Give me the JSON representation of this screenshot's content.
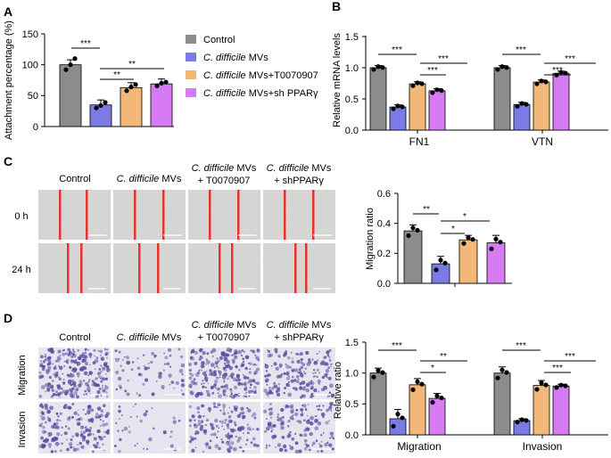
{
  "colors": {
    "control": "#8C8C8C",
    "mvs": "#7B7BE6",
    "t007": "#F3B778",
    "sh": "#D77BF5",
    "red_line": "#E8322B",
    "stain": "#5B4A9E"
  },
  "panels": {
    "A": "A",
    "B": "B",
    "C": "C",
    "D": "D"
  },
  "legend": {
    "control": "Control",
    "mvs_italic": "C. difficile",
    "mvs_rest": " MVs",
    "t007_italic": "C. difficile",
    "t007_rest": " MVs+T0070907",
    "sh_italic": "C. difficile",
    "sh_rest": " MVs+sh PPARγ"
  },
  "chartA": {
    "ylabel": "Attachment percentage (%)",
    "yticks": [
      "0",
      "50",
      "100",
      "150"
    ],
    "ylim": [
      0,
      150
    ],
    "values": [
      100,
      35,
      63,
      69
    ],
    "points": [
      [
        92,
        100,
        110
      ],
      [
        30,
        34,
        39
      ],
      [
        58,
        64,
        68
      ],
      [
        66,
        70,
        72
      ]
    ],
    "sig": [
      "***",
      "**",
      "**"
    ]
  },
  "chartB": {
    "ylabel": "Relative mRNA levels",
    "yticks": [
      "0.0",
      "0.5",
      "1.0",
      "1.5"
    ],
    "ylim": [
      0,
      1.5
    ],
    "groups": [
      "FN1",
      "VTN"
    ],
    "values": [
      [
        1.0,
        0.37,
        0.74,
        0.63
      ],
      [
        1.0,
        0.41,
        0.77,
        0.91
      ]
    ],
    "sig": [
      "***",
      "***",
      "***",
      "***",
      "***",
      "***"
    ]
  },
  "chartC": {
    "ylabel": "Migration ratio",
    "yticks": [
      "0.0",
      "0.2",
      "0.4",
      "0.6"
    ],
    "ylim": [
      0,
      0.6
    ],
    "values": [
      0.35,
      0.13,
      0.29,
      0.27
    ],
    "sig": [
      "**",
      "*",
      "*"
    ]
  },
  "chartD": {
    "ylabel": "Relative ratio",
    "yticks": [
      "0.0",
      "0.5",
      "1.0",
      "1.5"
    ],
    "ylim": [
      0,
      1.5
    ],
    "groups": [
      "Migration",
      "Invasion"
    ],
    "values": [
      [
        1.0,
        0.26,
        0.81,
        0.59
      ],
      [
        1.0,
        0.23,
        0.8,
        0.79
      ]
    ],
    "sig": [
      "***",
      "*",
      "**",
      "***",
      "***",
      "***"
    ]
  },
  "micro": {
    "col_control": "Control",
    "col_mvs_italic": "C. difficile",
    "col_mvs_rest": " MVs",
    "col_t007_l1_italic": "C. difficile",
    "col_t007_l1_rest": " MVs",
    "col_t007_l2": "+ T0070907",
    "col_sh_l1_italic": "C. difficile",
    "col_sh_l1_rest": " MVs",
    "col_sh_l2_C": "+ shPPARγ",
    "col_sh_l2_D": "+ shPPARγ",
    "row_0h": "0 h",
    "row_24h": "24 h",
    "row_migration": "Migration",
    "row_invasion": "Invasion"
  }
}
